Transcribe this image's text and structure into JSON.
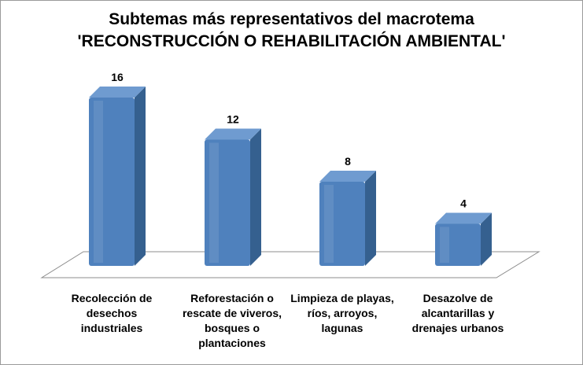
{
  "chart_data": {
    "type": "bar",
    "title": "Subtemas más representativos del macrotema",
    "subtitle": "'RECONSTRUCCIÓN O REHABILITACIÓN AMBIENTAL'",
    "categories": [
      "Recolección de\ndesechos\nindustriales",
      "Reforestación o\nrescate de viveros,\nbosques o\nplantaciones",
      "Limpieza de playas,\nríos, arroyos,\nlagunas",
      "Desazolve de\nalcantarillas y\ndrenajes urbanos"
    ],
    "values": [
      16,
      12,
      8,
      4
    ],
    "data_labels": [
      "16",
      "12",
      "8",
      "4"
    ],
    "ylim": [
      0,
      16
    ],
    "grid": false,
    "legend": "none",
    "style": "3d-column",
    "colors": {
      "bar_front": "#4f81bd",
      "bar_side": "#35608f",
      "bar_top": "#6f9bd0",
      "floor_stroke": "#8c8c8c"
    }
  }
}
